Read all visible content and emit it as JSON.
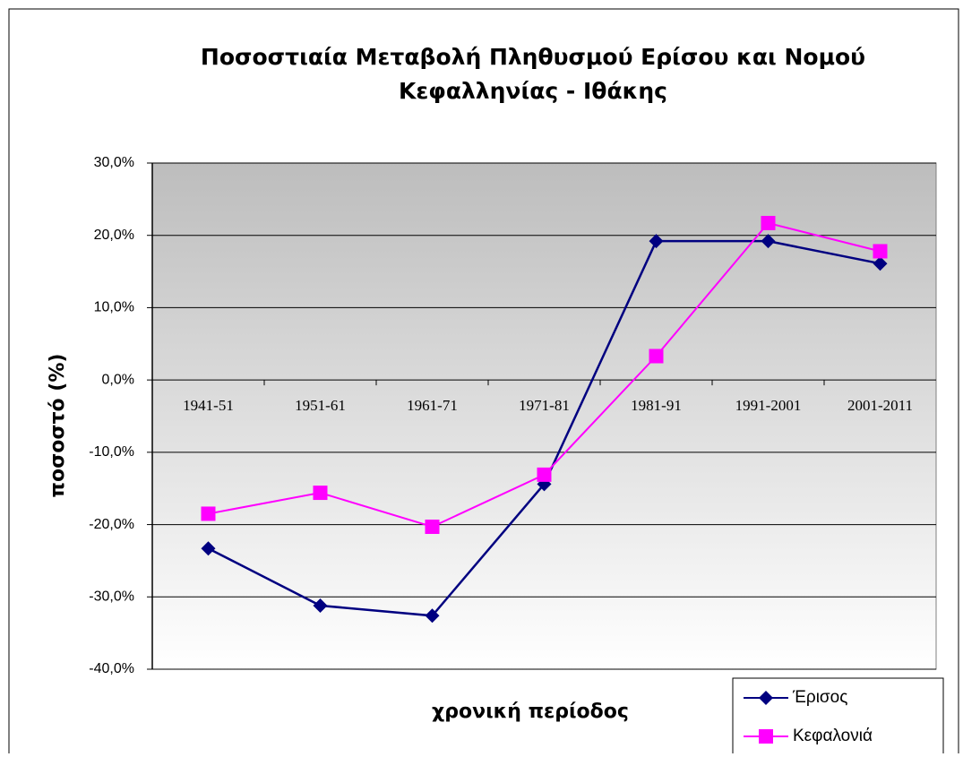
{
  "chart_data": {
    "type": "line",
    "title": [
      "Ποσοστιαία Μεταβολή Πληθυσμού Ερίσου και Νομού",
      "Κεφαλληνίας - Ιθάκης"
    ],
    "x_label": "χρονική περίοδος",
    "y_label": "ποσοστό (%)",
    "categories": [
      "1941-51",
      "1951-61",
      "1961-71",
      "1971-81",
      "1981-91",
      "1991-2001",
      "2001-2011"
    ],
    "series": [
      {
        "name": "Έρισος",
        "color": "#000080",
        "marker": "diamond",
        "values": [
          -23.3,
          -31.2,
          -32.6,
          -14.4,
          19.2,
          19.2,
          16.1
        ]
      },
      {
        "name": "Κεφαλονιά",
        "color": "#ff00ff",
        "marker": "square",
        "values": [
          -18.5,
          -15.6,
          -20.3,
          -13.1,
          3.3,
          21.7,
          17.8
        ]
      }
    ],
    "ylim": [
      -40,
      30
    ],
    "yticks": [
      {
        "value": -40,
        "label": "-40,0%"
      },
      {
        "value": -30,
        "label": "-30,0%"
      },
      {
        "value": -20,
        "label": "-20,0%"
      },
      {
        "value": -10,
        "label": "-10,0%"
      },
      {
        "value": 0,
        "label": "0,0%"
      },
      {
        "value": 10,
        "label": "10,0%"
      },
      {
        "value": 20,
        "label": "20,0%"
      },
      {
        "value": 30,
        "label": "30,0%"
      }
    ],
    "grid": true,
    "legend": "bottom-right"
  }
}
